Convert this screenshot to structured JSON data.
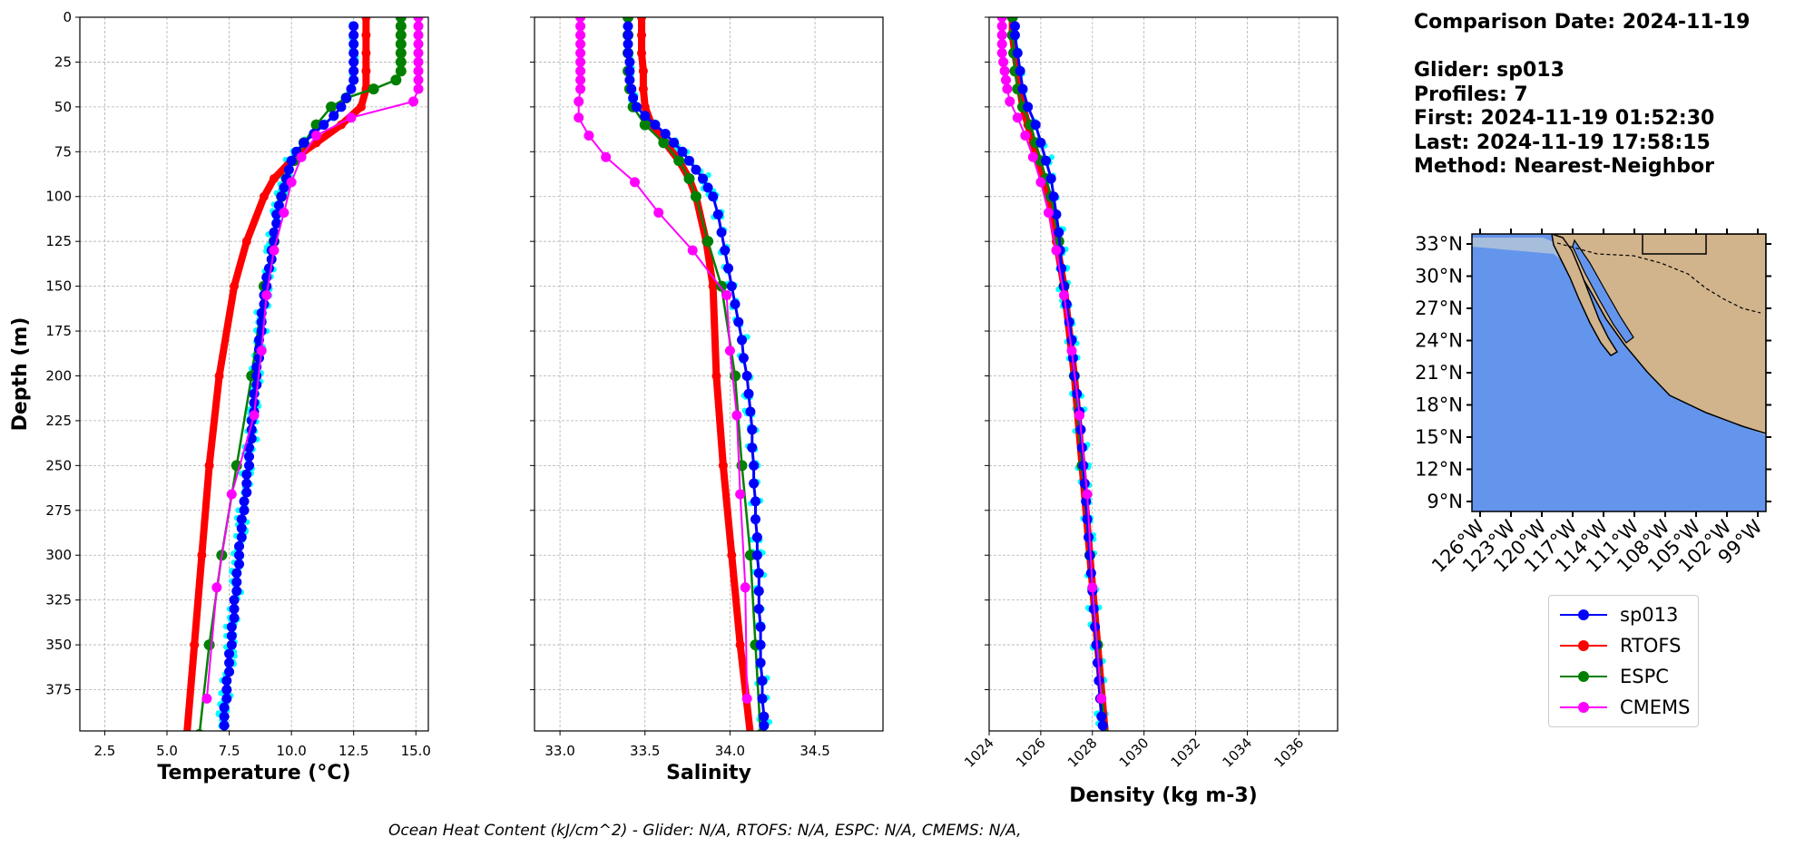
{
  "info": {
    "comparison_date": "Comparison Date: 2024-11-19",
    "glider": "Glider: sp013",
    "profiles": "Profiles: 7",
    "first": "First: 2024-11-19 01:52:30",
    "last": "Last: 2024-11-19 17:58:15",
    "method": "Method: Nearest-Neighbor"
  },
  "footer": "Ocean Heat Content (kJ/cm^2) - Glider: N/A,  RTOFS: N/A,  ESPC: N/A,  CMEMS: N/A,",
  "colors": {
    "sp013": "#0000ff",
    "RTOFS": "#ff0000",
    "ESPC": "#008000",
    "CMEMS": "#ff00ff",
    "glider_raw": "#00ffff",
    "ocean": "#6495ed",
    "shelf": "#a6bddb",
    "land": "#d2b48c"
  },
  "legend": [
    {
      "name": "sp013",
      "color": "#0000ff"
    },
    {
      "name": "RTOFS",
      "color": "#ff0000"
    },
    {
      "name": "ESPC",
      "color": "#008000"
    },
    {
      "name": "CMEMS",
      "color": "#ff00ff"
    }
  ],
  "chart_data": [
    {
      "type": "line",
      "xlabel": "Temperature (°C)",
      "ylabel": "Depth (m)",
      "xlim": [
        1.5,
        15.5
      ],
      "ylim": [
        398,
        0
      ],
      "xticks": [
        2.5,
        5.0,
        7.5,
        10.0,
        12.5,
        15.0
      ],
      "yticks": [
        0,
        25,
        50,
        75,
        100,
        125,
        150,
        175,
        200,
        225,
        250,
        275,
        300,
        325,
        350,
        375
      ],
      "grid": true,
      "series": [
        {
          "name": "sp013",
          "depth": [
            5,
            10,
            15,
            20,
            25,
            30,
            35,
            40,
            45,
            50,
            55,
            60,
            65,
            70,
            75,
            80,
            85,
            90,
            95,
            100,
            105,
            110,
            115,
            120,
            125,
            130,
            135,
            140,
            145,
            150,
            155,
            160,
            165,
            170,
            175,
            180,
            185,
            190,
            195,
            200,
            205,
            210,
            215,
            220,
            225,
            230,
            235,
            240,
            245,
            250,
            255,
            260,
            265,
            270,
            275,
            280,
            285,
            290,
            295,
            300,
            305,
            310,
            315,
            320,
            325,
            330,
            335,
            340,
            345,
            350,
            355,
            360,
            365,
            370,
            375,
            380,
            385,
            390,
            395
          ],
          "values": [
            12.5,
            12.5,
            12.5,
            12.5,
            12.5,
            12.5,
            12.5,
            12.4,
            12.2,
            12.0,
            11.7,
            11.3,
            10.9,
            10.5,
            10.2,
            10.0,
            9.9,
            9.8,
            9.7,
            9.6,
            9.5,
            9.4,
            9.4,
            9.3,
            9.3,
            9.2,
            9.2,
            9.1,
            9.0,
            9.0,
            8.9,
            8.9,
            8.8,
            8.8,
            8.8,
            8.7,
            8.7,
            8.7,
            8.6,
            8.6,
            8.6,
            8.5,
            8.5,
            8.5,
            8.4,
            8.4,
            8.4,
            8.3,
            8.3,
            8.3,
            8.2,
            8.2,
            8.2,
            8.1,
            8.1,
            8.0,
            8.0,
            8.0,
            7.9,
            7.9,
            7.9,
            7.8,
            7.8,
            7.8,
            7.7,
            7.7,
            7.7,
            7.6,
            7.6,
            7.6,
            7.5,
            7.5,
            7.5,
            7.4,
            7.4,
            7.4,
            7.3,
            7.3,
            7.3
          ]
        },
        {
          "name": "RTOFS",
          "depth": [
            0,
            10,
            20,
            30,
            40,
            50,
            60,
            70,
            80,
            90,
            100,
            125,
            150,
            200,
            250,
            300,
            350,
            400
          ],
          "values": [
            13.0,
            13.0,
            13.0,
            13.0,
            13.0,
            12.8,
            12.0,
            11.0,
            10.0,
            9.3,
            8.9,
            8.2,
            7.7,
            7.1,
            6.7,
            6.4,
            6.1,
            5.8
          ]
        },
        {
          "name": "ESPC",
          "depth": [
            0,
            5,
            10,
            15,
            20,
            25,
            30,
            35,
            40,
            45,
            50,
            60,
            70,
            80,
            90,
            100,
            125,
            150,
            200,
            250,
            300,
            350,
            400
          ],
          "values": [
            14.4,
            14.4,
            14.4,
            14.4,
            14.4,
            14.4,
            14.4,
            14.2,
            13.3,
            12.2,
            11.6,
            11.0,
            10.5,
            10.1,
            9.8,
            9.6,
            9.3,
            8.9,
            8.4,
            7.8,
            7.2,
            6.7,
            6.3
          ]
        },
        {
          "name": "CMEMS",
          "depth": [
            0,
            5,
            10,
            15,
            20,
            25,
            30,
            35,
            40,
            47,
            56,
            66,
            78,
            92,
            109,
            130,
            155,
            186,
            222,
            266,
            318,
            380
          ],
          "values": [
            15.1,
            15.1,
            15.1,
            15.1,
            15.1,
            15.1,
            15.1,
            15.1,
            15.1,
            14.9,
            12.4,
            11.0,
            10.4,
            10.0,
            9.7,
            9.3,
            9.0,
            8.8,
            8.5,
            7.6,
            7.0,
            6.6
          ]
        }
      ]
    },
    {
      "type": "line",
      "xlabel": "Salinity",
      "ylabel": "",
      "xlim": [
        32.85,
        34.9
      ],
      "ylim": [
        398,
        0
      ],
      "xticks": [
        33.0,
        33.5,
        34.0,
        34.5
      ],
      "grid": true,
      "series": [
        {
          "name": "sp013",
          "depth": [
            5,
            10,
            15,
            20,
            25,
            30,
            35,
            40,
            45,
            50,
            55,
            60,
            65,
            70,
            75,
            80,
            85,
            90,
            95,
            100,
            110,
            120,
            130,
            140,
            150,
            160,
            170,
            180,
            190,
            200,
            210,
            220,
            230,
            240,
            250,
            260,
            270,
            280,
            290,
            300,
            310,
            320,
            330,
            340,
            350,
            360,
            370,
            380,
            390,
            395
          ],
          "values": [
            33.4,
            33.4,
            33.4,
            33.4,
            33.41,
            33.41,
            33.41,
            33.42,
            33.43,
            33.45,
            33.5,
            33.56,
            33.62,
            33.67,
            33.72,
            33.76,
            33.8,
            33.84,
            33.87,
            33.9,
            33.93,
            33.95,
            33.97,
            33.99,
            34.01,
            34.03,
            34.05,
            34.07,
            34.08,
            34.1,
            34.11,
            34.12,
            34.13,
            34.13,
            34.14,
            34.14,
            34.15,
            34.15,
            34.16,
            34.16,
            34.17,
            34.17,
            34.17,
            34.18,
            34.18,
            34.18,
            34.19,
            34.19,
            34.2,
            34.2
          ]
        },
        {
          "name": "RTOFS",
          "depth": [
            0,
            10,
            20,
            30,
            40,
            50,
            60,
            70,
            80,
            90,
            100,
            125,
            150,
            200,
            250,
            300,
            350,
            400
          ],
          "values": [
            33.48,
            33.48,
            33.48,
            33.49,
            33.49,
            33.5,
            33.54,
            33.62,
            33.7,
            33.76,
            33.8,
            33.86,
            33.9,
            33.92,
            33.96,
            34.01,
            34.06,
            34.12
          ]
        },
        {
          "name": "ESPC",
          "depth": [
            0,
            10,
            20,
            30,
            40,
            50,
            60,
            70,
            80,
            90,
            100,
            125,
            150,
            200,
            250,
            300,
            350,
            400
          ],
          "values": [
            33.4,
            33.4,
            33.4,
            33.4,
            33.41,
            33.43,
            33.5,
            33.61,
            33.7,
            33.76,
            33.8,
            33.87,
            33.95,
            34.03,
            34.07,
            34.12,
            34.15,
            34.18
          ]
        },
        {
          "name": "CMEMS",
          "depth": [
            0,
            5,
            10,
            15,
            20,
            25,
            30,
            35,
            40,
            47,
            56,
            66,
            78,
            92,
            109,
            130,
            155,
            186,
            222,
            266,
            318,
            380
          ],
          "values": [
            33.12,
            33.12,
            33.12,
            33.12,
            33.12,
            33.12,
            33.12,
            33.12,
            33.12,
            33.11,
            33.11,
            33.17,
            33.27,
            33.44,
            33.58,
            33.78,
            33.98,
            34.0,
            34.04,
            34.06,
            34.09,
            34.1
          ]
        }
      ]
    },
    {
      "type": "line",
      "xlabel": "Density (kg m-3)",
      "ylabel": "",
      "xlim": [
        1024,
        1037.5
      ],
      "ylim": [
        398,
        0
      ],
      "xticks": [
        1024,
        1026,
        1028,
        1030,
        1032,
        1034,
        1036
      ],
      "grid": true,
      "series": [
        {
          "name": "sp013",
          "depth": [
            5,
            10,
            20,
            30,
            40,
            50,
            60,
            70,
            80,
            90,
            100,
            110,
            120,
            130,
            140,
            150,
            160,
            170,
            180,
            190,
            200,
            210,
            220,
            230,
            240,
            250,
            260,
            270,
            280,
            290,
            300,
            310,
            320,
            330,
            340,
            350,
            360,
            370,
            380,
            390,
            395
          ],
          "values": [
            1025.0,
            1025.0,
            1025.1,
            1025.2,
            1025.3,
            1025.5,
            1025.8,
            1026.0,
            1026.2,
            1026.4,
            1026.5,
            1026.6,
            1026.7,
            1026.75,
            1026.8,
            1026.9,
            1027.0,
            1027.1,
            1027.2,
            1027.25,
            1027.3,
            1027.4,
            1027.5,
            1027.55,
            1027.6,
            1027.65,
            1027.7,
            1027.75,
            1027.8,
            1027.85,
            1027.9,
            1027.95,
            1028.0,
            1028.05,
            1028.1,
            1028.15,
            1028.2,
            1028.25,
            1028.3,
            1028.35,
            1028.4
          ]
        },
        {
          "name": "RTOFS",
          "depth": [
            0,
            10,
            20,
            30,
            40,
            50,
            60,
            70,
            80,
            90,
            100,
            125,
            150,
            200,
            250,
            300,
            350,
            400
          ],
          "values": [
            1024.9,
            1024.9,
            1025.0,
            1025.1,
            1025.2,
            1025.3,
            1025.5,
            1025.7,
            1025.9,
            1026.1,
            1026.3,
            1026.6,
            1026.9,
            1027.3,
            1027.6,
            1027.9,
            1028.2,
            1028.5
          ]
        },
        {
          "name": "ESPC",
          "depth": [
            0,
            10,
            20,
            30,
            40,
            50,
            60,
            70,
            80,
            90,
            100,
            125,
            150,
            200,
            250,
            300,
            350,
            400
          ],
          "values": [
            1024.9,
            1024.9,
            1024.95,
            1025.0,
            1025.1,
            1025.3,
            1025.6,
            1025.8,
            1026.0,
            1026.2,
            1026.4,
            1026.7,
            1026.9,
            1027.3,
            1027.6,
            1027.9,
            1028.2,
            1028.5
          ]
        },
        {
          "name": "CMEMS",
          "depth": [
            0,
            5,
            10,
            15,
            20,
            25,
            30,
            35,
            40,
            47,
            56,
            66,
            78,
            92,
            109,
            130,
            155,
            186,
            222,
            266,
            318,
            380
          ],
          "values": [
            1024.5,
            1024.5,
            1024.5,
            1024.5,
            1024.5,
            1024.55,
            1024.6,
            1024.65,
            1024.7,
            1024.8,
            1025.1,
            1025.4,
            1025.7,
            1026.0,
            1026.3,
            1026.6,
            1026.9,
            1027.2,
            1027.5,
            1027.8,
            1028.0,
            1028.35
          ]
        }
      ]
    }
  ],
  "map": {
    "lat_ticks": [
      "33°N",
      "30°N",
      "27°N",
      "24°N",
      "21°N",
      "18°N",
      "15°N",
      "12°N",
      "9°N"
    ],
    "lon_ticks": [
      "126°W",
      "123°W",
      "120°W",
      "117°W",
      "114°W",
      "111°W",
      "108°W",
      "105°W",
      "102°W",
      "99°W"
    ]
  }
}
